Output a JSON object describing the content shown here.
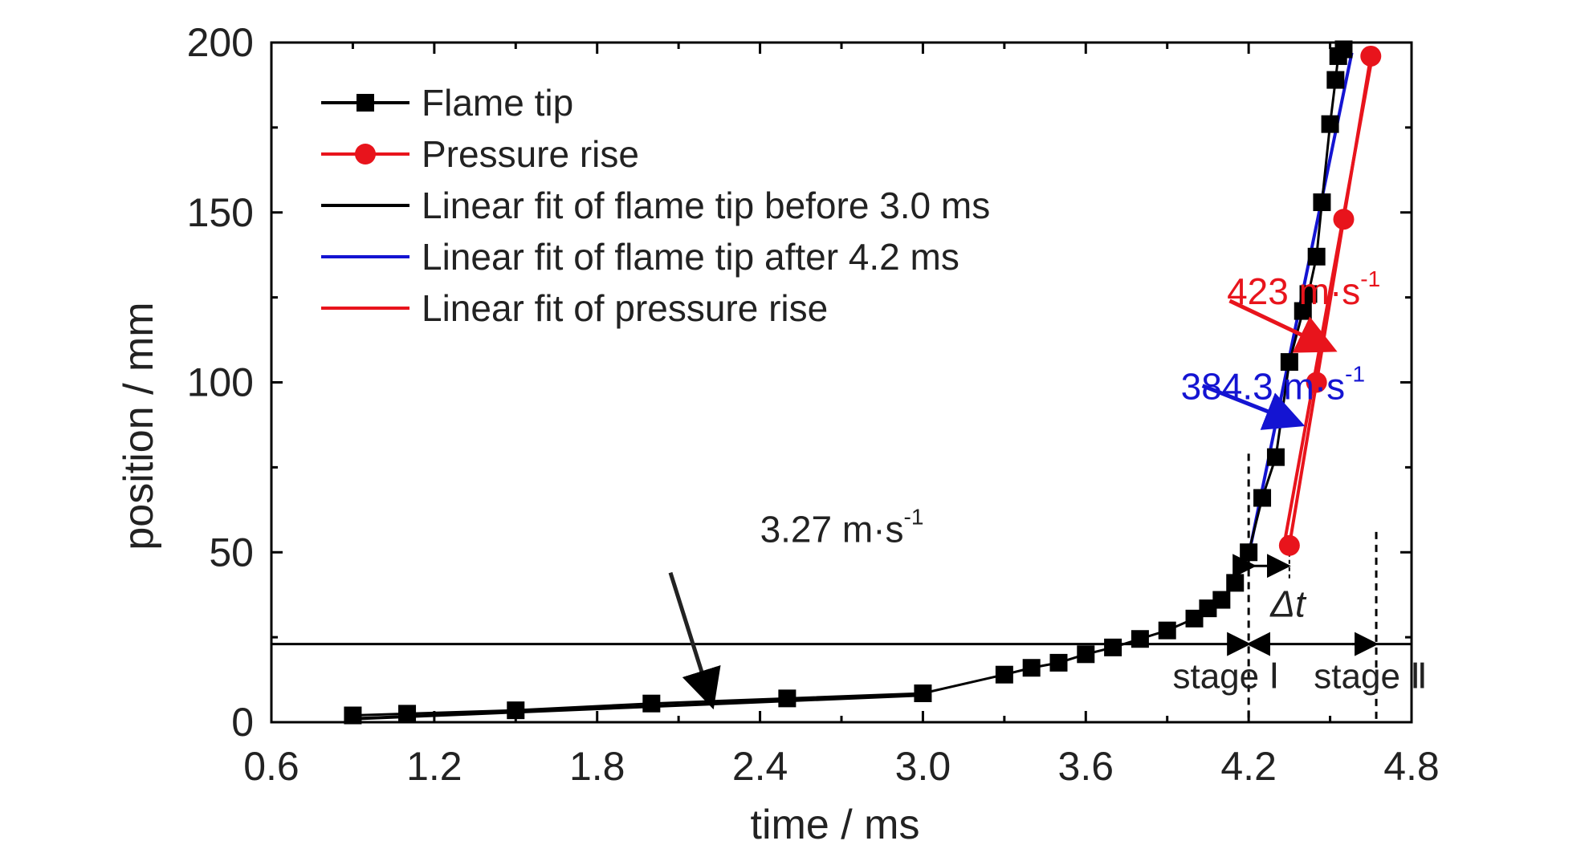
{
  "chart_data": {
    "type": "line",
    "title": "",
    "xlabel": "time / ms",
    "ylabel": "position / mm",
    "xlim": [
      0.6,
      4.8
    ],
    "ylim": [
      0,
      200
    ],
    "xticks": [
      "0.6",
      "1.2",
      "1.8",
      "2.4",
      "3.0",
      "3.6",
      "4.2",
      "4.8"
    ],
    "yticks": [
      "0",
      "50",
      "100",
      "150",
      "200"
    ],
    "grid": false,
    "legend_position": "top-left",
    "series": [
      {
        "name": "Flame tip",
        "color": "#000000",
        "marker": "square",
        "x": [
          0.9,
          1.1,
          1.5,
          2.0,
          2.5,
          3.0,
          3.3,
          3.4,
          3.5,
          3.6,
          3.7,
          3.8,
          3.9,
          4.0,
          4.05,
          4.1,
          4.15,
          4.2,
          4.25,
          4.3,
          4.35,
          4.4,
          4.42,
          4.45,
          4.47,
          4.5,
          4.52,
          4.53,
          4.55
        ],
        "y": [
          2,
          2.5,
          3.5,
          5.5,
          7,
          8.5,
          14,
          16,
          17.5,
          20,
          22,
          24.5,
          27,
          30.5,
          33.5,
          36,
          41,
          50,
          66,
          78,
          106,
          121,
          126,
          137,
          153,
          176,
          189,
          196,
          198
        ]
      },
      {
        "name": "Pressure rise",
        "color": "#e8141c",
        "marker": "circle",
        "x": [
          4.35,
          4.45,
          4.55,
          4.65
        ],
        "y": [
          52,
          100,
          148,
          196
        ]
      },
      {
        "name": "Linear fit of flame tip before 3.0 ms",
        "color": "#000000",
        "marker": "none",
        "x": [
          0.9,
          3.0
        ],
        "y": [
          1,
          8
        ]
      },
      {
        "name": "Linear fit of flame tip after 4.2 ms",
        "color": "#1414d2",
        "marker": "none",
        "x": [
          4.2,
          4.58
        ],
        "y": [
          49,
          197
        ]
      },
      {
        "name": "Linear fit of pressure rise",
        "color": "#e8141c",
        "marker": "none",
        "x": [
          4.33,
          4.66
        ],
        "y": [
          52,
          198
        ]
      }
    ],
    "reference_lines": {
      "horizontal_y": 23,
      "stage_boundary_x": [
        4.2,
        4.67
      ]
    },
    "annotations": [
      {
        "id": "slope_early",
        "text": "3.27 m·s",
        "sup": "-1",
        "color": "#222222",
        "text_x": 2.4,
        "text_y": 53,
        "arrow_from": [
          2.07,
          44
        ],
        "arrow_to": [
          2.22,
          6
        ]
      },
      {
        "id": "slope_blue",
        "text": "384.3 m·s",
        "sup": "-1",
        "color": "#1414d2",
        "text_x": 3.95,
        "text_y": 95,
        "arrow_from": [
          4.03,
          99
        ],
        "arrow_to": [
          4.38,
          88
        ]
      },
      {
        "id": "slope_red",
        "text": "423 m·s",
        "sup": "-1",
        "color": "#e8141c",
        "text_x": 4.12,
        "text_y": 123,
        "arrow_from": [
          4.13,
          124
        ],
        "arrow_to": [
          4.5,
          110
        ]
      },
      {
        "id": "stage1",
        "text": "stage Ⅰ",
        "color": "#222222",
        "text_x": 3.92,
        "text_y": 10
      },
      {
        "id": "stage2",
        "text": "stage Ⅱ",
        "color": "#222222",
        "text_x": 4.44,
        "text_y": 10
      },
      {
        "id": "delta_t",
        "text": "Δt",
        "color": "#222222",
        "text_x": 4.28,
        "text_y": 31
      }
    ]
  }
}
